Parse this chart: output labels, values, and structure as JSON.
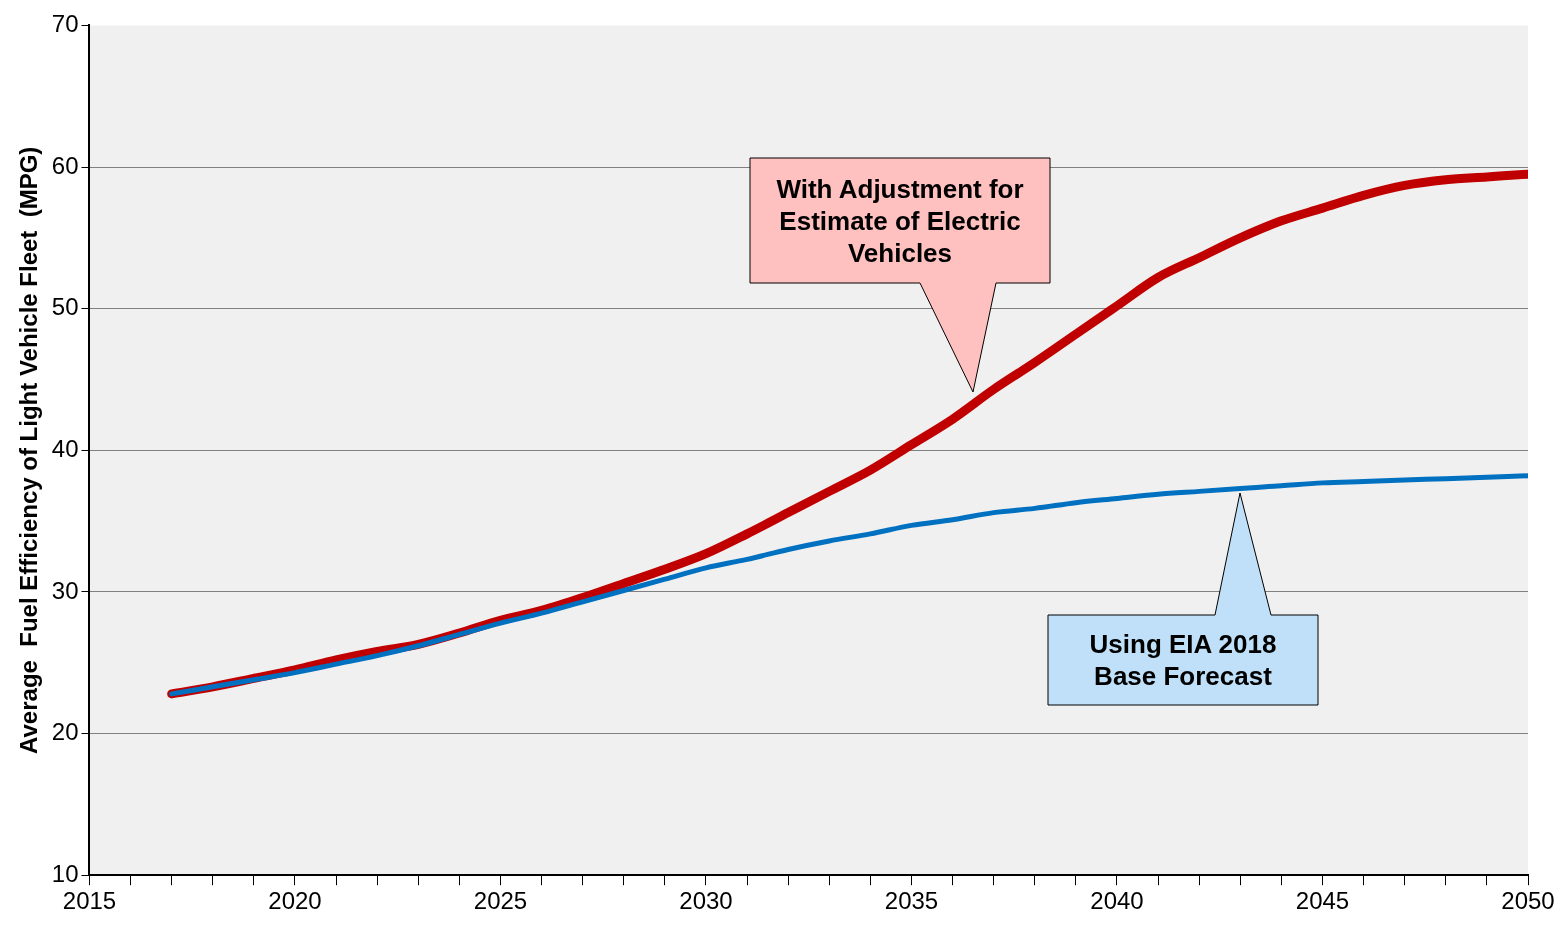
{
  "chart_data": {
    "type": "line",
    "ylabel": "Average  Fuel Efficiency of Light Vehicle Fleet  (MPG)",
    "x": [
      2017,
      2018,
      2019,
      2020,
      2021,
      2022,
      2023,
      2024,
      2025,
      2026,
      2027,
      2028,
      2029,
      2030,
      2031,
      2032,
      2033,
      2034,
      2035,
      2036,
      2037,
      2038,
      2039,
      2040,
      2041,
      2042,
      2043,
      2044,
      2045,
      2046,
      2047,
      2048,
      2049,
      2050
    ],
    "series": [
      {
        "color": "#c00000",
        "values": [
          22.8,
          23.3,
          23.9,
          24.5,
          25.2,
          25.8,
          26.3,
          27.1,
          28.0,
          28.7,
          29.6,
          30.6,
          31.6,
          32.7,
          34.1,
          35.6,
          37.1,
          38.6,
          40.4,
          42.2,
          44.3,
          46.2,
          48.2,
          50.2,
          52.2,
          53.6,
          55.0,
          56.2,
          57.1,
          58.0,
          58.7,
          59.1,
          59.3,
          59.5
        ]
      },
      {
        "color": "#0070c0",
        "values": [
          22.8,
          23.3,
          23.8,
          24.3,
          24.9,
          25.5,
          26.2,
          27.0,
          27.8,
          28.5,
          29.3,
          30.1,
          30.9,
          31.7,
          32.3,
          33.0,
          33.6,
          34.1,
          34.7,
          35.1,
          35.6,
          35.9,
          36.3,
          36.6,
          36.9,
          37.1,
          37.3,
          37.5,
          37.7,
          37.8,
          37.9,
          38.0,
          38.1,
          38.2
        ]
      }
    ],
    "xlim": [
      2015,
      2050
    ],
    "xticks": [
      2015,
      {
        "value": 2016,
        "label": null
      },
      {
        "value": 2017,
        "label": null
      },
      {
        "value": 2018,
        "label": null
      },
      {
        "value": 2019,
        "label": null
      },
      2020,
      {
        "value": 2021,
        "label": null
      },
      {
        "value": 2022,
        "label": null
      },
      {
        "value": 2023,
        "label": null
      },
      {
        "value": 2024,
        "label": null
      },
      2025,
      {
        "value": 2026,
        "label": null
      },
      {
        "value": 2027,
        "label": null
      },
      {
        "value": 2028,
        "label": null
      },
      {
        "value": 2029,
        "label": null
      },
      2030,
      {
        "value": 2031,
        "label": null
      },
      {
        "value": 2032,
        "label": null
      },
      {
        "value": 2033,
        "label": null
      },
      {
        "value": 2034,
        "label": null
      },
      2035,
      {
        "value": 2036,
        "label": null
      },
      {
        "value": 2037,
        "label": null
      },
      {
        "value": 2038,
        "label": null
      },
      {
        "value": 2039,
        "label": null
      },
      2040,
      {
        "value": 2041,
        "label": null
      },
      {
        "value": 2042,
        "label": null
      },
      {
        "value": 2043,
        "label": null
      },
      {
        "value": 2044,
        "label": null
      },
      2045,
      {
        "value": 2046,
        "label": null
      },
      {
        "value": 2047,
        "label": null
      },
      {
        "value": 2048,
        "label": null
      },
      {
        "value": 2049,
        "label": null
      },
      2050
    ],
    "ylim": [
      10,
      70
    ],
    "yticks": [
      10,
      20,
      30,
      40,
      50,
      60,
      70
    ],
    "grid": "y",
    "legend": false,
    "marker": "none",
    "line_style": "solid",
    "annotations": [
      "With Adjustment for Estimate of Electric Vehicles",
      "Using EIA 2018 Base Forecast"
    ]
  }
}
